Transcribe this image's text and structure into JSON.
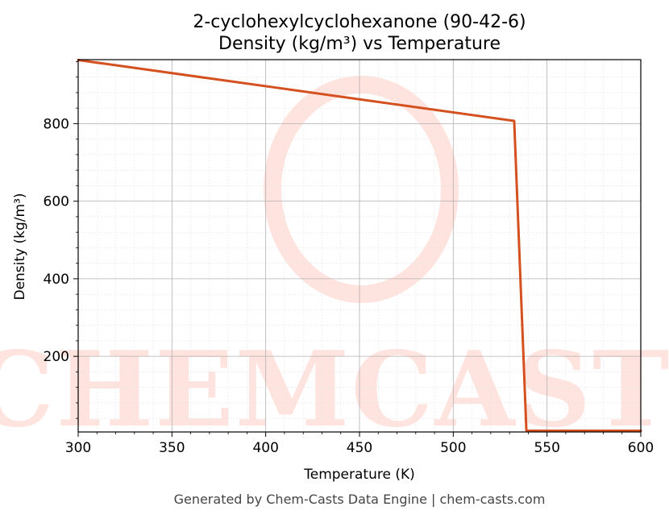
{
  "chart_data": {
    "type": "line",
    "title": "2-cyclohexylcyclohexanone (90-42-6)",
    "subtitle": "Density (kg/m³) vs Temperature",
    "xlabel": "Temperature (K)",
    "ylabel": "Density (kg/m³)",
    "xlim": [
      300,
      600
    ],
    "ylim": [
      5,
      965
    ],
    "x_ticks": [
      300,
      350,
      400,
      450,
      500,
      550,
      600
    ],
    "y_ticks": [
      200,
      400,
      600,
      800
    ],
    "grid": true,
    "legend": "none",
    "series": [
      {
        "color": "#d4501e",
        "x": [
          300,
          532.5,
          539,
          600
        ],
        "y": [
          964,
          807,
          8,
          8
        ]
      }
    ]
  },
  "watermark": {
    "text": "CHEMCASTS",
    "color": "#ffe3de"
  },
  "footer": "Generated by Chem-Casts Data Engine | chem-casts.com"
}
